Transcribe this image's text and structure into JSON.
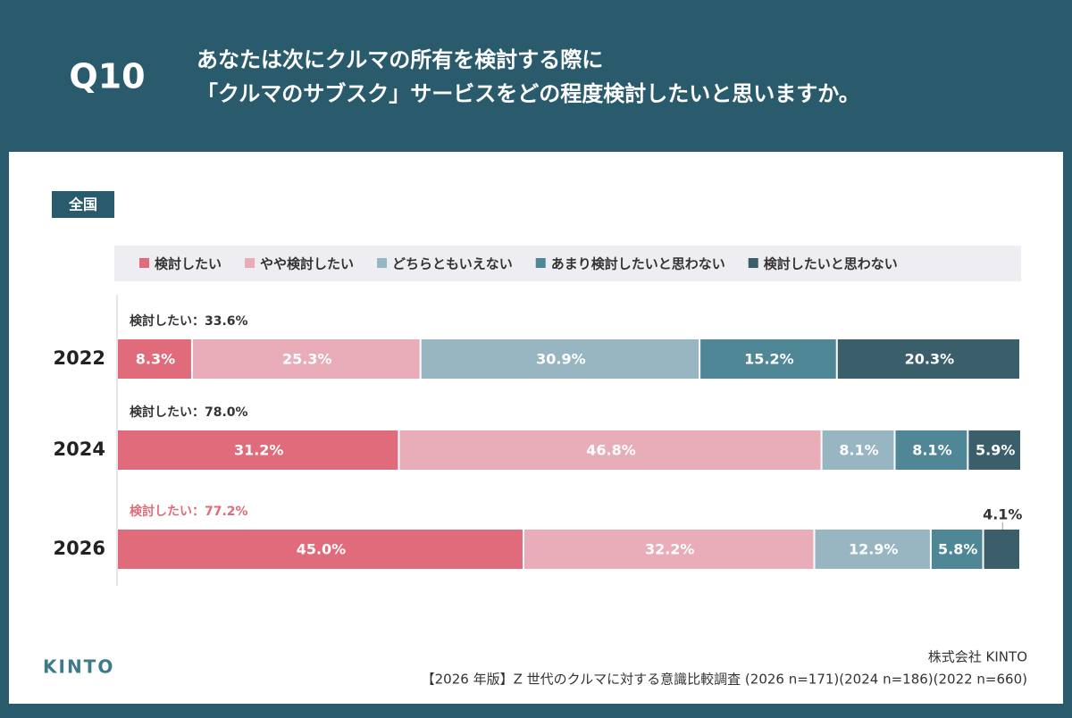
{
  "header": {
    "label": "Q10",
    "question": [
      "あなたは次にクルマの所有を検討する際に",
      "「クルマのサブスク」サービスをどの程度検討したいと思いますか。"
    ]
  },
  "region": "全国",
  "logo": "KINTO",
  "footer": {
    "company": "株式会社 KINTO",
    "source": "【2026 年版】Z 世代のクルマに対する意識比較調査 (2026 n=171)(2024 n=186)(2022 n=660)"
  },
  "chart_data": {
    "type": "bar",
    "orientation": "horizontal",
    "stacked": true,
    "categories": [
      "2022",
      "2024",
      "2026"
    ],
    "xlim": [
      0,
      100
    ],
    "annotations": [
      "検討したい：33.6%",
      "検討したい：78.0%",
      "検討したい：77.2%"
    ],
    "annotation_colors": [
      "#333333",
      "#333333",
      "#e06b7a"
    ],
    "series": [
      {
        "name": "検討したい",
        "color": "#e06b7a",
        "values": [
          8.3,
          31.2,
          45.0
        ],
        "value_labels": [
          "8.3%",
          "31.2%",
          "45.0%"
        ]
      },
      {
        "name": "やや検討したい",
        "color": "#e8adb9",
        "values": [
          25.3,
          46.8,
          32.2
        ],
        "value_labels": [
          "25.3%",
          "46.8%",
          "32.2%"
        ]
      },
      {
        "name": "どちらともいえない",
        "color": "#97b6c2",
        "values": [
          30.9,
          8.1,
          12.9
        ],
        "value_labels": [
          "30.9%",
          "8.1%",
          "12.9%"
        ]
      },
      {
        "name": "あまり検討したいと思わない",
        "color": "#4f8797",
        "values": [
          15.2,
          8.1,
          5.8
        ],
        "value_labels": [
          "15.2%",
          "8.1%",
          "5.8%"
        ]
      },
      {
        "name": "検討したいと思わない",
        "color": "#3a5f6b",
        "values": [
          20.3,
          5.9,
          4.1
        ],
        "value_labels": [
          "20.3%",
          "5.9%",
          "4.1%"
        ]
      }
    ]
  }
}
